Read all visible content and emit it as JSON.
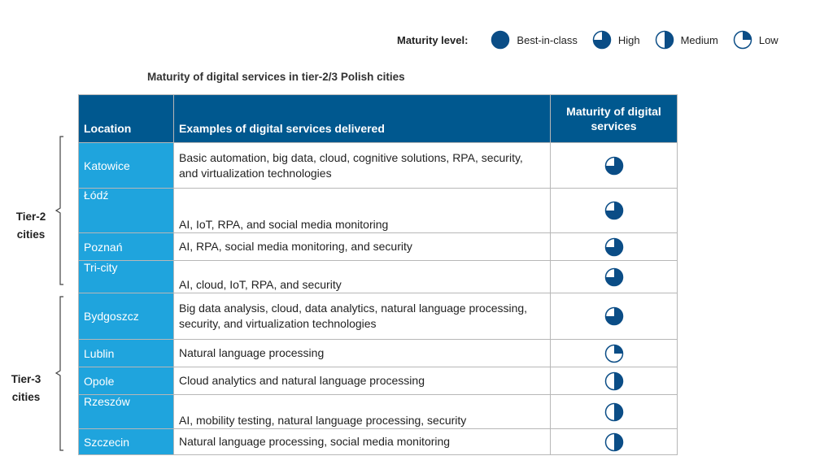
{
  "legend": {
    "label": "Maturity level:",
    "items": [
      {
        "label": "Best-in-class",
        "level": 4
      },
      {
        "label": "High",
        "level": 3
      },
      {
        "label": "Medium",
        "level": 2
      },
      {
        "label": "Low",
        "level": 1
      }
    ]
  },
  "chart_data": {
    "type": "table",
    "title": "Maturity of digital services in tier-2/3 Polish cities",
    "columns": [
      "Location",
      "Examples of digital services delivered",
      "Maturity of digital services"
    ],
    "maturity_scale": {
      "4": "Best-in-class",
      "3": "High",
      "2": "Medium",
      "1": "Low"
    },
    "groups": [
      {
        "label": "Tier-2 cities",
        "rows": [
          0,
          1,
          2,
          3
        ]
      },
      {
        "label": "Tier-3 cities",
        "rows": [
          4,
          5,
          6,
          7,
          8
        ]
      }
    ],
    "rows": [
      {
        "location": "Katowice",
        "services": "Basic automation, big data, cloud, cognitive solutions, RPA, security, and virtualization technologies",
        "maturity": 3
      },
      {
        "location": "Łódź",
        "services": "AI, IoT, RPA, and social media monitoring",
        "maturity": 3
      },
      {
        "location": "Poznań",
        "services": "AI, RPA, social media monitoring, and security",
        "maturity": 3
      },
      {
        "location": "Tri-city",
        "services": "AI, cloud, IoT, RPA, and security",
        "maturity": 3
      },
      {
        "location": "Bydgoszcz",
        "services": "Big data analysis, cloud, data analytics, natural language processing, security, and virtualization technologies",
        "maturity": 3
      },
      {
        "location": "Lublin",
        "services": "Natural language processing",
        "maturity": 1
      },
      {
        "location": "Opole",
        "services": "Cloud analytics and natural language processing",
        "maturity": 2
      },
      {
        "location": "Rzeszów",
        "services": "AI, mobility testing, natural language processing, security",
        "maturity": 2
      },
      {
        "location": "Szczecin",
        "services": "Natural language processing, social media monitoring",
        "maturity": 2
      }
    ]
  },
  "colors": {
    "header": "#00588f",
    "location": "#1fa4dd",
    "icon": "#0b4d86"
  }
}
